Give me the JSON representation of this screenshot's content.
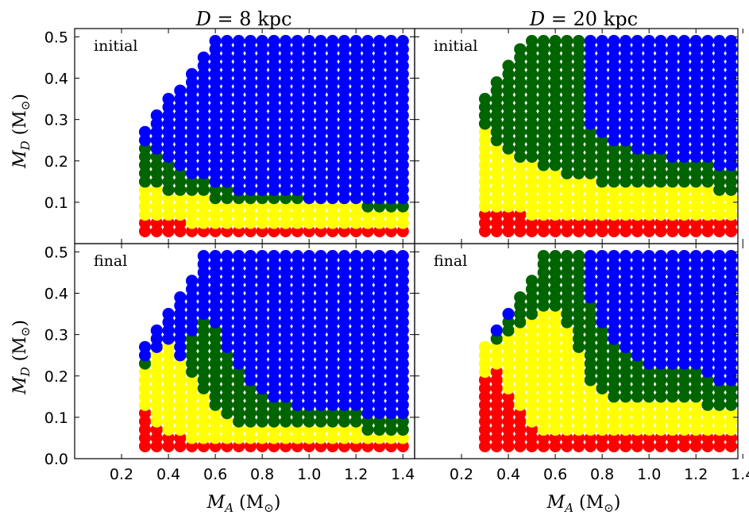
{
  "chart_data": {
    "type": "scatter",
    "columns": [
      "D = 8 kpc",
      "D = 20 kpc"
    ],
    "rows": [
      "initial",
      "final"
    ],
    "xlabel": "M_A (M_⊙)",
    "ylabel": "M_D (M_⊙)",
    "xlim": [
      0.0,
      1.45
    ],
    "ylim": [
      0.0,
      0.52
    ],
    "xticks": [
      "0.2",
      "0.4",
      "0.6",
      "0.8",
      "1.0",
      "1.2",
      "1.4"
    ],
    "yticks": [
      "0.0",
      "0.1",
      "0.2",
      "0.3",
      "0.4",
      "0.5"
    ],
    "grid": false,
    "colors": {
      "blue": "#0000ff",
      "green": "#006400",
      "yellow": "#ffff00",
      "red": "#ff0000"
    },
    "grid_sampling": {
      "MA_start": 0.3,
      "MA_step": 0.05,
      "MA_count": 23,
      "MD_start": 0.03,
      "MD_step": 0.02,
      "MD_count": 24
    },
    "panels": [
      {
        "label": "initial",
        "column": "D = 8 kpc",
        "red_max": [
          0.05,
          0.05,
          0.05,
          0.05,
          0.03,
          0.03,
          0.03,
          0.03,
          0.03,
          0.03,
          0.03,
          0.03,
          0.03,
          0.03,
          0.03,
          0.03,
          0.03,
          0.03,
          0.03,
          0.03,
          0.03,
          0.03,
          0.03
        ],
        "yellow_max": [
          0.13,
          0.13,
          0.11,
          0.11,
          0.11,
          0.11,
          0.09,
          0.09,
          0.09,
          0.09,
          0.09,
          0.09,
          0.09,
          0.09,
          0.09,
          0.09,
          0.09,
          0.09,
          0.09,
          0.07,
          0.07,
          0.07,
          0.07
        ],
        "green_max": [
          0.23,
          0.21,
          0.19,
          0.17,
          0.15,
          0.15,
          0.13,
          0.13,
          0.11,
          0.11,
          0.11,
          0.11,
          0.11,
          0.11,
          0.09,
          0.09,
          0.09,
          0.09,
          0.09,
          0.09,
          0.09,
          0.09,
          0.09
        ],
        "top": [
          0.27,
          0.31,
          0.35,
          0.37,
          0.41,
          0.45,
          0.49,
          0.49,
          0.49,
          0.49,
          0.49,
          0.49,
          0.49,
          0.49,
          0.49,
          0.49,
          0.49,
          0.49,
          0.49,
          0.49,
          0.49,
          0.49,
          0.49
        ]
      },
      {
        "label": "initial",
        "column": "D = 20 kpc",
        "red_max": [
          0.07,
          0.07,
          0.07,
          0.07,
          0.05,
          0.05,
          0.05,
          0.05,
          0.05,
          0.05,
          0.05,
          0.05,
          0.05,
          0.05,
          0.05,
          0.05,
          0.05,
          0.05,
          0.05,
          0.05,
          0.05,
          0.05,
          0.05
        ],
        "yellow_max": [
          0.27,
          0.23,
          0.21,
          0.19,
          0.19,
          0.17,
          0.17,
          0.15,
          0.15,
          0.15,
          0.13,
          0.13,
          0.13,
          0.13,
          0.13,
          0.13,
          0.13,
          0.13,
          0.13,
          0.13,
          0.11,
          0.11,
          0.11
        ],
        "green_max": [
          0.35,
          0.39,
          0.43,
          0.47,
          0.49,
          0.49,
          0.49,
          0.49,
          0.49,
          0.27,
          0.25,
          0.23,
          0.23,
          0.21,
          0.21,
          0.21,
          0.19,
          0.19,
          0.19,
          0.19,
          0.17,
          0.17,
          0.17
        ],
        "top": [
          0.35,
          0.39,
          0.43,
          0.47,
          0.49,
          0.49,
          0.49,
          0.49,
          0.49,
          0.49,
          0.49,
          0.49,
          0.49,
          0.49,
          0.49,
          0.49,
          0.49,
          0.49,
          0.49,
          0.49,
          0.49,
          0.49,
          0.49
        ]
      },
      {
        "label": "final",
        "column": "D = 8 kpc",
        "red_max": [
          0.11,
          0.07,
          0.05,
          0.05,
          0.03,
          0.03,
          0.03,
          0.03,
          0.03,
          0.03,
          0.03,
          0.03,
          0.03,
          0.03,
          0.03,
          0.03,
          0.03,
          0.03,
          0.03,
          0.03,
          0.03,
          0.03,
          0.03
        ],
        "yellow_max": [
          0.21,
          0.25,
          0.27,
          0.23,
          0.19,
          0.15,
          0.11,
          0.09,
          0.07,
          0.07,
          0.07,
          0.07,
          0.07,
          0.07,
          0.07,
          0.07,
          0.07,
          0.07,
          0.07,
          0.05,
          0.05,
          0.05,
          0.05
        ],
        "green_max": [
          0.23,
          0.25,
          0.27,
          0.23,
          0.29,
          0.33,
          0.31,
          0.25,
          0.21,
          0.17,
          0.15,
          0.13,
          0.13,
          0.11,
          0.11,
          0.11,
          0.11,
          0.11,
          0.11,
          0.09,
          0.09,
          0.09,
          0.09
        ],
        "top": [
          0.27,
          0.31,
          0.35,
          0.39,
          0.43,
          0.49,
          0.49,
          0.49,
          0.49,
          0.49,
          0.49,
          0.49,
          0.49,
          0.49,
          0.49,
          0.49,
          0.49,
          0.49,
          0.49,
          0.49,
          0.49,
          0.49,
          0.49
        ]
      },
      {
        "label": "final",
        "column": "D = 20 kpc",
        "red_max": [
          0.19,
          0.21,
          0.15,
          0.11,
          0.07,
          0.05,
          0.05,
          0.05,
          0.05,
          0.05,
          0.05,
          0.05,
          0.05,
          0.05,
          0.05,
          0.05,
          0.05,
          0.05,
          0.05,
          0.05,
          0.05,
          0.05,
          0.05
        ],
        "yellow_max": [
          0.27,
          0.27,
          0.29,
          0.31,
          0.33,
          0.35,
          0.35,
          0.31,
          0.25,
          0.17,
          0.15,
          0.13,
          0.13,
          0.13,
          0.13,
          0.13,
          0.13,
          0.13,
          0.13,
          0.11,
          0.11,
          0.11,
          0.11
        ],
        "green_max": [
          0.27,
          0.29,
          0.33,
          0.39,
          0.43,
          0.49,
          0.49,
          0.49,
          0.49,
          0.37,
          0.31,
          0.27,
          0.25,
          0.23,
          0.21,
          0.21,
          0.21,
          0.21,
          0.21,
          0.19,
          0.17,
          0.17,
          0.17
        ],
        "top": [
          0.27,
          0.31,
          0.35,
          0.39,
          0.43,
          0.49,
          0.49,
          0.49,
          0.49,
          0.49,
          0.49,
          0.49,
          0.49,
          0.49,
          0.49,
          0.49,
          0.49,
          0.49,
          0.49,
          0.49,
          0.49,
          0.49,
          0.49
        ]
      }
    ]
  }
}
